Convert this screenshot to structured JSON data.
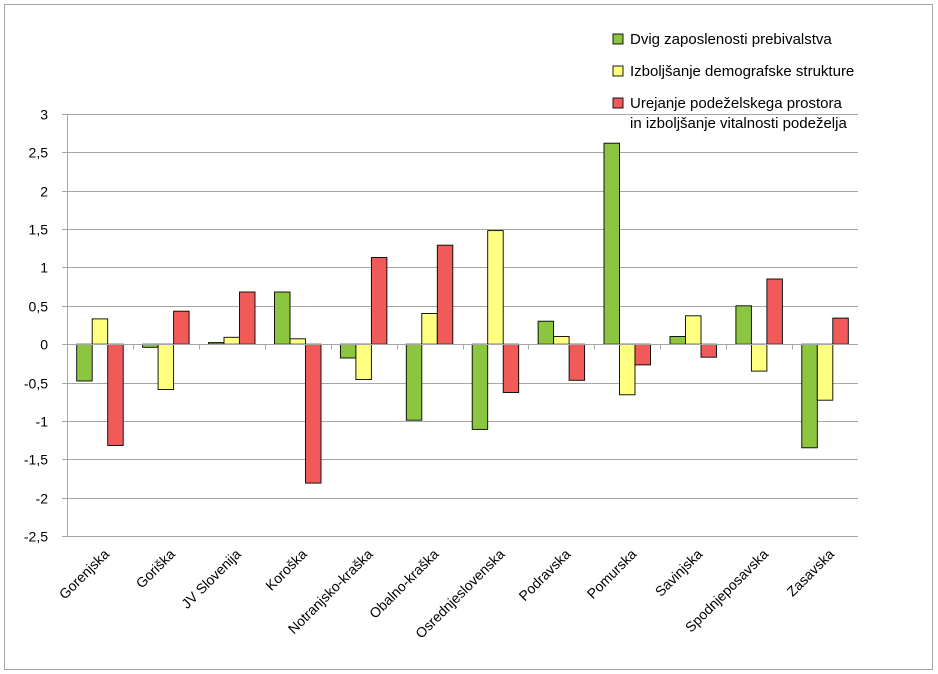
{
  "chart_data": {
    "type": "bar",
    "title": "",
    "xlabel": "",
    "ylabel": "",
    "ylim": [
      -2.5,
      3
    ],
    "ytick_step": 0.5,
    "ytick_labels": [
      "-2,5",
      "-2",
      "-1,5",
      "-1",
      "-0,5",
      "0",
      "0,5",
      "1",
      "1,5",
      "2",
      "2,5",
      "3"
    ],
    "grid": true,
    "legend_position": "top-right",
    "categories": [
      "Gorenjska",
      "Goriška",
      "JV Slovenija",
      "Koroška",
      "Notranjsko-kraška",
      "Obalno-kraška",
      "Osrednjeslovenska",
      "Podravska",
      "Pomurska",
      "Savinjska",
      "Spodnjeposavska",
      "Zasavska"
    ],
    "series": [
      {
        "name": "Dvig zaposlenosti prebivalstva",
        "color": "#8cc63f",
        "values": [
          -0.48,
          -0.04,
          0.02,
          0.68,
          -0.18,
          -0.99,
          -1.11,
          0.3,
          2.62,
          0.1,
          0.5,
          -1.35
        ]
      },
      {
        "name": "Izboljšanje demografske strukture",
        "color": "#ffff80",
        "values": [
          0.33,
          -0.59,
          0.09,
          0.07,
          -0.46,
          0.4,
          1.48,
          0.1,
          -0.66,
          0.37,
          -0.35,
          -0.73
        ]
      },
      {
        "name": "Urejanje podeželskega prostora in izboljšanje vitalnosti podeželja",
        "name_lines": [
          "Urejanje podeželskega prostora",
          "in izboljšanje vitalnosti podeželja"
        ],
        "color": "#f25a5a",
        "values": [
          -1.32,
          0.43,
          0.68,
          -1.81,
          1.13,
          1.29,
          -0.63,
          -0.47,
          -0.27,
          -0.17,
          0.85,
          0.34
        ]
      }
    ]
  }
}
